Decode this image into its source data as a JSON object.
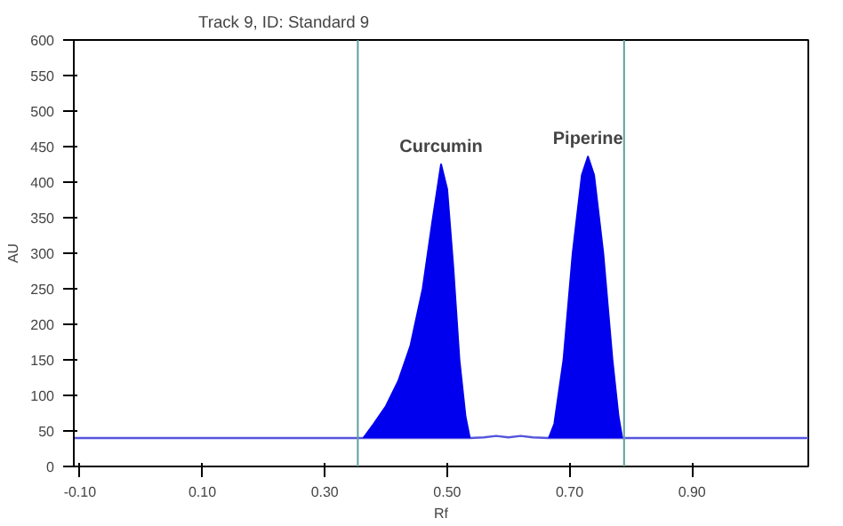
{
  "chart_data": {
    "type": "line",
    "title": "Track 9, ID: Standard 9",
    "xlabel": "Rf",
    "ylabel": "AU",
    "xlim": [
      -0.11,
      1.09
    ],
    "ylim": [
      0,
      600
    ],
    "xticks": [
      {
        "value": -0.1,
        "label": "-0.10"
      },
      {
        "value": 0.1,
        "label": "0.10"
      },
      {
        "value": 0.3,
        "label": "0.30"
      },
      {
        "value": 0.5,
        "label": "0.50"
      },
      {
        "value": 0.7,
        "label": "0.70"
      },
      {
        "value": 0.9,
        "label": "0.90"
      }
    ],
    "yticks": [
      0,
      50,
      100,
      150,
      200,
      250,
      300,
      350,
      400,
      450,
      500,
      550,
      600
    ],
    "grid": false,
    "marker": "none",
    "line_style": "solid",
    "series": [
      {
        "color": "#5555dd",
        "x": [
          -0.11,
          0.363,
          0.537,
          0.56,
          0.58,
          0.6,
          0.62,
          0.64,
          0.666,
          0.786,
          1.09
        ],
        "values": [
          40,
          40,
          40,
          41,
          43,
          41,
          43,
          41,
          40,
          40,
          40
        ]
      },
      {
        "type": "area",
        "color": "#0000ee",
        "x": [
          0.363,
          0.38,
          0.4,
          0.42,
          0.44,
          0.46,
          0.475,
          0.49,
          0.5,
          0.51,
          0.52,
          0.53,
          0.537
        ],
        "values": [
          40,
          60,
          85,
          120,
          170,
          250,
          340,
          425,
          390,
          280,
          150,
          70,
          40
        ]
      },
      {
        "type": "area",
        "color": "#0000ee",
        "x": [
          0.666,
          0.675,
          0.69,
          0.705,
          0.72,
          0.73,
          0.74,
          0.755,
          0.77,
          0.78,
          0.786
        ],
        "values": [
          40,
          60,
          150,
          300,
          410,
          436,
          410,
          300,
          150,
          70,
          40
        ]
      }
    ],
    "ref_lines": [
      {
        "axis": "x",
        "value": 0.354,
        "label": null,
        "color": "#5f9ea0"
      },
      {
        "axis": "x",
        "value": 0.789,
        "label": null,
        "color": "#5f9ea0"
      }
    ],
    "annotations": [
      {
        "text": "Curcumin",
        "x": 0.49,
        "y": 425
      },
      {
        "text": "Piperine",
        "x": 0.73,
        "y": 436
      }
    ]
  }
}
